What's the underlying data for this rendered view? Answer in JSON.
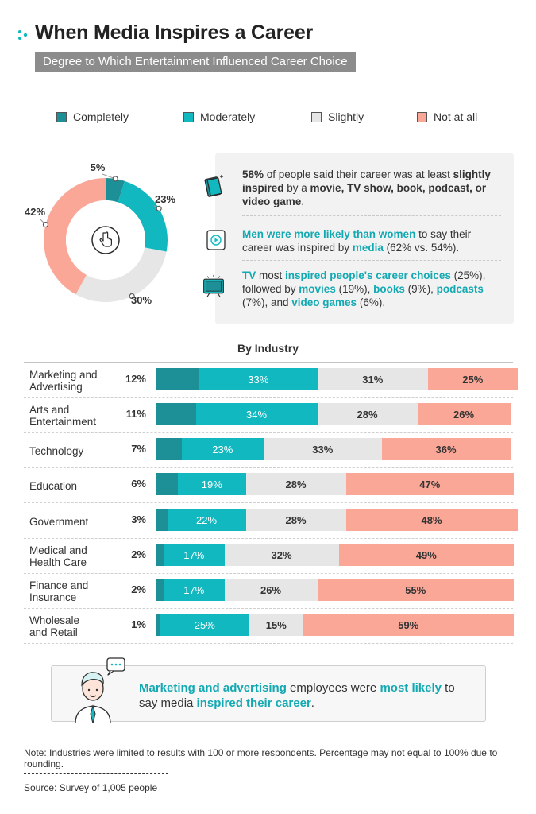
{
  "header": {
    "title": "When Media Inspires a Career",
    "subtitle": "Degree to Which Entertainment Influenced Career Choice"
  },
  "colors": {
    "completely": "#1d8f97",
    "moderately": "#12b8bf",
    "slightly": "#e6e6e6",
    "not_at_all": "#faa797"
  },
  "legend": [
    "Completely",
    "Moderately",
    "Slightly",
    "Not at all"
  ],
  "donut_labels": [
    "5%",
    "23%",
    "30%",
    "42%"
  ],
  "info": {
    "p1": {
      "pct": "58%",
      "a": " of people said their career was at least ",
      "slightly": "slightly",
      "b": " ",
      "inspired": "inspired",
      "c": " by a ",
      "media_list": "movie, TV show, book, podcast, or video game",
      "d": "."
    },
    "p2": {
      "men": "Men were more likely than women",
      "a": " to say their career was inspired by ",
      "media": "media",
      "b": " (62% vs. 54%)."
    },
    "p3": {
      "tv": "TV",
      "a": " most ",
      "inspired": "inspired people's career choices",
      "b": " (25%), followed by ",
      "movies": "movies",
      "c": " (19%), ",
      "books": "books",
      "d": " (9%), ",
      "podcasts": "podcasts",
      "e": " (7%), and ",
      "games": "video games",
      "f": " (6%)."
    }
  },
  "by_industry_title": "By Industry",
  "chart_data": [
    {
      "type": "pie",
      "categories": [
        "Completely",
        "Moderately",
        "Slightly",
        "Not at all"
      ],
      "values": [
        5,
        23,
        30,
        42
      ]
    },
    {
      "type": "bar",
      "orientation": "horizontal",
      "stacked": true,
      "title": "By Industry",
      "categories": [
        "Marketing and Advertising",
        "Arts and Entertainment",
        "Technology",
        "Education",
        "Government",
        "Medical and Health Care",
        "Finance and Insurance",
        "Wholesale and Retail"
      ],
      "series": [
        {
          "name": "Completely",
          "values": [
            12,
            11,
            7,
            6,
            3,
            2,
            2,
            1
          ]
        },
        {
          "name": "Moderately",
          "values": [
            33,
            34,
            23,
            19,
            22,
            17,
            17,
            25
          ]
        },
        {
          "name": "Slightly",
          "values": [
            31,
            28,
            33,
            28,
            28,
            32,
            26,
            15
          ]
        },
        {
          "name": "Not at all",
          "values": [
            25,
            26,
            36,
            47,
            48,
            49,
            55,
            59
          ]
        }
      ],
      "labels": [
        [
          "12%",
          "33%",
          "31%",
          "25%"
        ],
        [
          "11%",
          "34%",
          "28%",
          "26%"
        ],
        [
          "7%",
          "23%",
          "33%",
          "36%"
        ],
        [
          "6%",
          "19%",
          "28%",
          "47%"
        ],
        [
          "3%",
          "22%",
          "28%",
          "48%"
        ],
        [
          "2%",
          "17%",
          "32%",
          "49%"
        ],
        [
          "2%",
          "17%",
          "26%",
          "55%"
        ],
        [
          "1%",
          "25%",
          "15%",
          "59%"
        ]
      ],
      "row_labels": [
        [
          "Marketing and",
          "Advertising"
        ],
        [
          "Arts and",
          "Entertainment"
        ],
        [
          "Technology"
        ],
        [
          "Education"
        ],
        [
          "Government"
        ],
        [
          "Medical and",
          "Health Care"
        ],
        [
          "Finance and",
          "Insurance"
        ],
        [
          "Wholesale",
          "and Retail"
        ]
      ]
    }
  ],
  "callout": {
    "a": "Marketing and advertising",
    "b": " employees were ",
    "c": "most likely",
    "d": " to say media ",
    "e": "inspired their career",
    "f": "."
  },
  "footer": {
    "note": "Note: Industries were limited to results with 100 or more respondents. Percentage may not equal to 100% due to rounding.",
    "source": "Source: Survey of 1,005 people"
  }
}
